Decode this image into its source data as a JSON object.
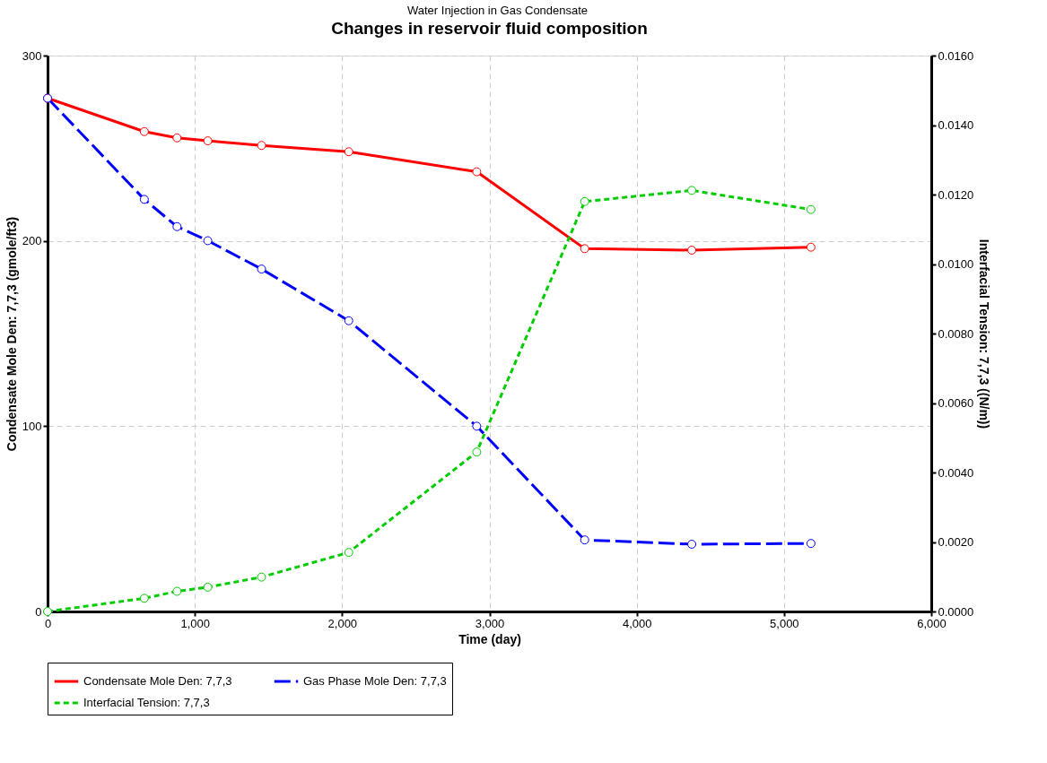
{
  "chart_data": {
    "type": "line",
    "title": "Changes in reservoir fluid composition",
    "subtitle": "Water Injection in Gas Condensate",
    "xlabel": "Time (day)",
    "ylabel": "Condensate Mole Den: 7,7,3 (gmole/ft3)",
    "y2label": "Interfacial Tension: 7,7,3 ((N/m))",
    "x": [
      0,
      657,
      879,
      1088,
      1453,
      2045,
      2914,
      3647,
      4374,
      5183
    ],
    "series": [
      {
        "name": "Condensate Mole Den: 7,7,3",
        "color": "#ff0000",
        "line_style": "solid",
        "values": [
          277,
          259,
          255.6,
          254,
          251.5,
          248.1,
          237.3,
          195.8,
          195,
          196.6
        ]
      },
      {
        "name": "Gas Phase Mole Den: 7,7,3",
        "color": "#0000ff",
        "line_style": "dashed",
        "values": [
          277,
          222.4,
          207.7,
          200.1,
          184.8,
          156.9,
          100,
          38.6,
          36.3,
          36.7
        ]
      },
      {
        "name": "Interfacial Tension: 7,7,3",
        "color": "#00cc00",
        "line_style": "dotted",
        "axis": "y2",
        "values": [
          0,
          0.00038,
          0.00058,
          0.0007,
          0.00099,
          0.0017,
          0.00459,
          0.0118,
          0.01212,
          0.01157
        ]
      }
    ],
    "xlim": [
      0,
      6000
    ],
    "xticks": [
      0,
      {
        "value": 1000,
        "label": "1,000"
      },
      {
        "value": 2000,
        "label": "2,000"
      },
      {
        "value": 3000,
        "label": "3,000"
      },
      {
        "value": 4000,
        "label": "4,000"
      },
      {
        "value": 5000,
        "label": "5,000"
      },
      {
        "value": 6000,
        "label": "6,000"
      }
    ],
    "ylim": [
      0,
      300
    ],
    "yticks": [
      0,
      100,
      200,
      300
    ],
    "y2lim": [
      0,
      0.016
    ],
    "y2ticks": [
      {
        "value": 0,
        "label": "0.0000"
      },
      {
        "value": 0.002,
        "label": "0.0020"
      },
      {
        "value": 0.004,
        "label": "0.0040"
      },
      {
        "value": 0.006,
        "label": "0.0060"
      },
      {
        "value": 0.008,
        "label": "0.0080"
      },
      {
        "value": 0.01,
        "label": "0.0100"
      },
      {
        "value": 0.012,
        "label": "0.0120"
      },
      {
        "value": 0.014,
        "label": "0.0140"
      },
      {
        "value": 0.016,
        "label": "0.0160"
      }
    ],
    "grid": true,
    "legend": "bottom",
    "marker": "circle"
  }
}
